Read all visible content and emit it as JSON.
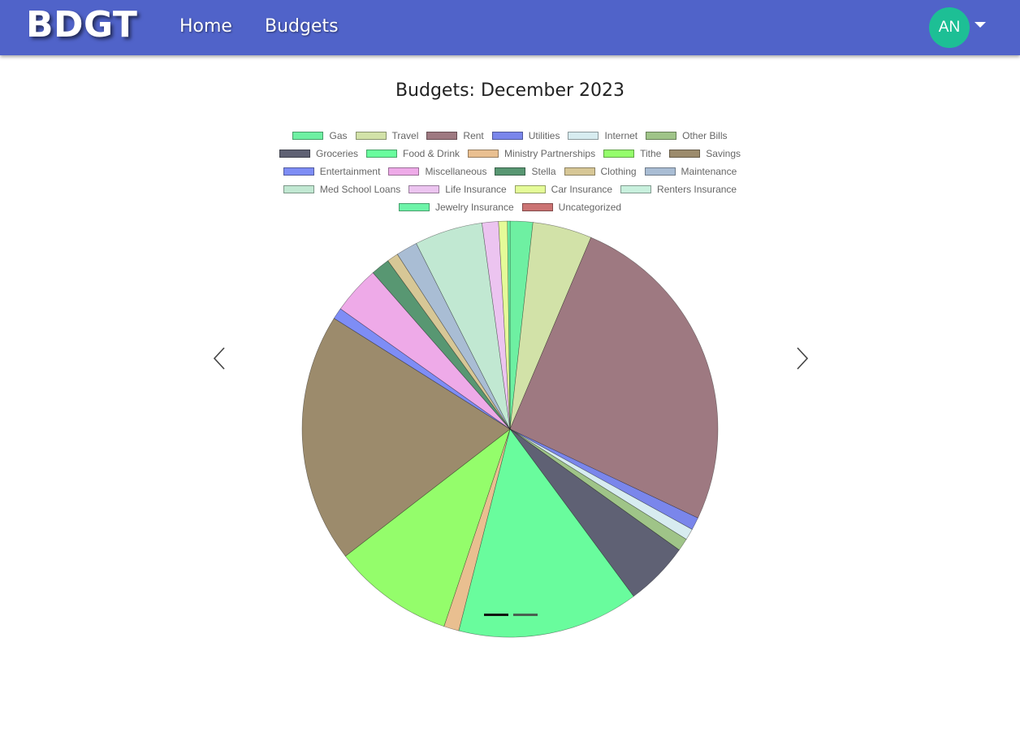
{
  "navbar": {
    "brand": "BDGT",
    "links": [
      "Home",
      "Budgets"
    ],
    "avatar_initials": "AN",
    "avatar_color": "#1dbf95",
    "bar_color": "#5063c9"
  },
  "chart_data": {
    "type": "pie",
    "title": "Budgets: December 2023",
    "legend_position": "top",
    "categories": [
      "Gas",
      "Travel",
      "Rent",
      "Utilities",
      "Internet",
      "Other Bills",
      "Groceries",
      "Food & Drink",
      "Ministry Partnerships",
      "Tithe",
      "Savings",
      "Entertainment",
      "Miscellaneous",
      "Stella",
      "Clothing",
      "Maintenance",
      "Med School Loans",
      "Life Insurance",
      "Car Insurance",
      "Renters Insurance",
      "Jewelry Insurance",
      "Uncategorized"
    ],
    "values": [
      1.8,
      4.7,
      26.2,
      1.0,
      0.9,
      1.0,
      5.1,
      14.4,
      1.2,
      9.6,
      19.8,
      0.9,
      3.8,
      1.5,
      0.9,
      1.7,
      5.4,
      1.3,
      0.7,
      0.0,
      0.2,
      0.0
    ],
    "colors": [
      "#6ef0a2",
      "#d2e2a8",
      "#9e7981",
      "#7a86eb",
      "#d7ecf0",
      "#9fc488",
      "#5f6174",
      "#69fc9d",
      "#e9bf90",
      "#94fd6b",
      "#9c8b6c",
      "#7e8df5",
      "#eeaae8",
      "#589772",
      "#d7c796",
      "#a9bdd4",
      "#c1e8d2",
      "#ecc4f0",
      "#e5fb98",
      "#c8f0dd",
      "#6df4a8",
      "#cb7373"
    ]
  },
  "carousel": {
    "prev_icon": "chevron-left-icon",
    "next_icon": "chevron-right-icon",
    "active_index": 0,
    "slide_count": 2
  }
}
